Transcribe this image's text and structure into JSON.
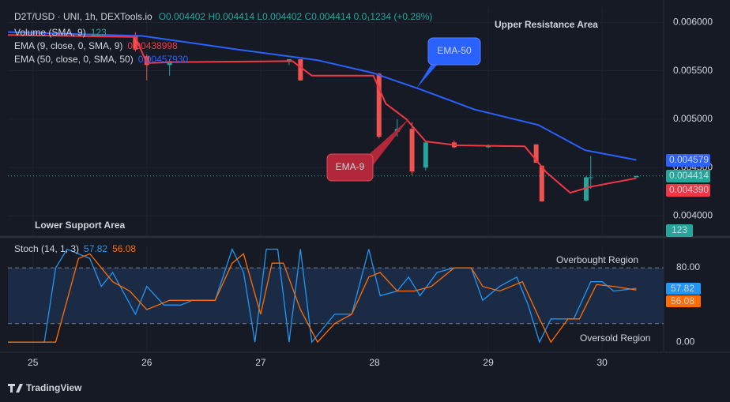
{
  "chart_data": [
    {
      "type": "candlestick",
      "title": "D2T/USD · UNI, 1h, DEXTools.io",
      "ohlc_text": "O0.004402 H0.004414 L0.004402 C0.004414 0.0₁1234 (+0.28%)",
      "legend_lines": [
        {
          "label": "Volume (SMA, 9)",
          "value": "123"
        },
        {
          "label": "EMA (9, close, 0, SMA, 9)",
          "value": "0.00438998"
        },
        {
          "label": "EMA (50, close, 0, SMA, 50)",
          "value": "0.00457930"
        }
      ],
      "volume": 123,
      "annotations": [
        "Upper Resistance Area",
        "Lower Support Area"
      ],
      "up_color": "#26a69a",
      "down_color": "#ef5350",
      "x": [
        25.9,
        26.0,
        26.2,
        27.25,
        27.35,
        28.04,
        28.2,
        28.33,
        28.45,
        28.7,
        29.0,
        29.42,
        29.47,
        29.86,
        29.9,
        30.3
      ],
      "open": [
        0.00587,
        0.00565,
        0.00556,
        0.0056,
        0.00562,
        0.00547,
        0.00487,
        0.0049,
        0.0045,
        0.00476,
        0.00471,
        0.00474,
        0.00452,
        0.00416,
        0.0044,
        0.0044
      ],
      "high": [
        0.0059,
        0.00567,
        0.00562,
        0.00562,
        0.00562,
        0.00548,
        0.005,
        0.00497,
        0.00478,
        0.00478,
        0.00474,
        0.00474,
        0.00452,
        0.00441,
        0.00462,
        0.004414
      ],
      "low": [
        0.0057,
        0.0054,
        0.00545,
        0.00556,
        0.0054,
        0.0048,
        0.00482,
        0.00442,
        0.00447,
        0.0047,
        0.0047,
        0.00455,
        0.00415,
        0.00415,
        0.00428,
        0.0044
      ],
      "close": [
        0.00572,
        0.00556,
        0.0056,
        0.00562,
        0.0054,
        0.00482,
        0.0049,
        0.00446,
        0.00476,
        0.00471,
        0.00473,
        0.00455,
        0.00415,
        0.0044,
        0.0044,
        0.004414
      ],
      "series": [
        {
          "name": "EMA-9",
          "color": "#f23645",
          "x": [
            24.78,
            25.9,
            26.0,
            26.24,
            27.28,
            27.45,
            27.99,
            28.1,
            28.28,
            28.45,
            28.73,
            29.32,
            29.51,
            29.72,
            29.89,
            30.3
          ],
          "values": [
            0.00587,
            0.00585,
            0.00558,
            0.00559,
            0.0056,
            0.00545,
            0.00545,
            0.00516,
            0.005,
            0.00477,
            0.00473,
            0.00472,
            0.00445,
            0.00424,
            0.0043,
            0.00439
          ],
          "value_labels": [
            null,
            null,
            null,
            null,
            null,
            null,
            null,
            null,
            null,
            null,
            null,
            null,
            null,
            null,
            null,
            "0.004390"
          ]
        },
        {
          "name": "EMA-50",
          "color": "#2962ff",
          "x": [
            24.78,
            25.96,
            26.8,
            27.5,
            27.98,
            28.4,
            28.88,
            29.44,
            29.85,
            30.3
          ],
          "values": [
            0.0059,
            0.00586,
            0.00572,
            0.00561,
            0.00548,
            0.00531,
            0.0051,
            0.00494,
            0.00468,
            0.004579
          ]
        }
      ],
      "xlim": [
        24.78,
        30.54
      ],
      "xticks": [
        25,
        26,
        27,
        28,
        29,
        30
      ],
      "ylim": [
        0.0038,
        0.00615
      ],
      "yticks": [
        {
          "value": 0.004,
          "label": "0.004000"
        },
        {
          "value": 0.0045,
          "label": "0.004500"
        },
        {
          "value": 0.005,
          "label": "0.005000"
        },
        {
          "value": 0.0055,
          "label": "0.005500"
        },
        {
          "value": 0.006,
          "label": "0.006000"
        }
      ],
      "grid": true
    },
    {
      "type": "line",
      "title": "Stoch (14, 1, 3)",
      "annotations": [
        "Overbought Region",
        "Oversold Region"
      ],
      "bands": [
        20,
        80
      ],
      "series": [
        {
          "name": "%K",
          "color": "#2196f3",
          "x": [
            24.78,
            25.1,
            25.2,
            25.3,
            25.5,
            25.6,
            25.7,
            25.9,
            26.0,
            26.15,
            26.3,
            26.4,
            26.6,
            26.75,
            26.85,
            26.95,
            27.05,
            27.15,
            27.25,
            27.35,
            27.45,
            27.65,
            27.8,
            27.95,
            28.05,
            28.2,
            28.3,
            28.4,
            28.55,
            28.7,
            28.85,
            28.95,
            29.1,
            29.25,
            29.35,
            29.45,
            29.55,
            29.75,
            29.9,
            30.0,
            30.1,
            30.3
          ],
          "values": [
            0,
            0,
            80,
            100,
            90,
            60,
            75,
            30,
            60,
            40,
            40,
            45,
            45,
            100,
            75,
            0,
            100,
            100,
            0,
            100,
            0,
            30,
            30,
            100,
            50,
            55,
            70,
            50,
            75,
            80,
            80,
            45,
            60,
            70,
            40,
            0,
            25,
            25,
            65,
            65,
            55,
            57.82
          ]
        },
        {
          "name": "%D",
          "color": "#ff6d00",
          "x": [
            24.78,
            25.2,
            25.4,
            25.5,
            25.7,
            25.85,
            26.0,
            26.2,
            26.4,
            26.6,
            26.75,
            26.85,
            27.0,
            27.1,
            27.2,
            27.35,
            27.5,
            27.65,
            27.8,
            27.95,
            28.05,
            28.2,
            28.35,
            28.5,
            28.7,
            28.85,
            28.95,
            29.1,
            29.3,
            29.45,
            29.55,
            29.7,
            29.8,
            29.95,
            30.1,
            30.3
          ],
          "values": [
            0,
            0,
            90,
            95,
            65,
            55,
            35,
            45,
            45,
            45,
            85,
            95,
            30,
            85,
            85,
            35,
            0,
            20,
            30,
            70,
            75,
            55,
            55,
            60,
            80,
            80,
            60,
            55,
            65,
            25,
            0,
            25,
            25,
            62,
            60,
            56.08
          ]
        }
      ],
      "xlim": [
        24.78,
        30.54
      ],
      "ylim": [
        -10,
        103
      ],
      "yticks": [
        {
          "value": 0,
          "label": "0.00"
        },
        {
          "value": 80,
          "label": "80.00"
        }
      ]
    }
  ],
  "branding": "TradingView"
}
